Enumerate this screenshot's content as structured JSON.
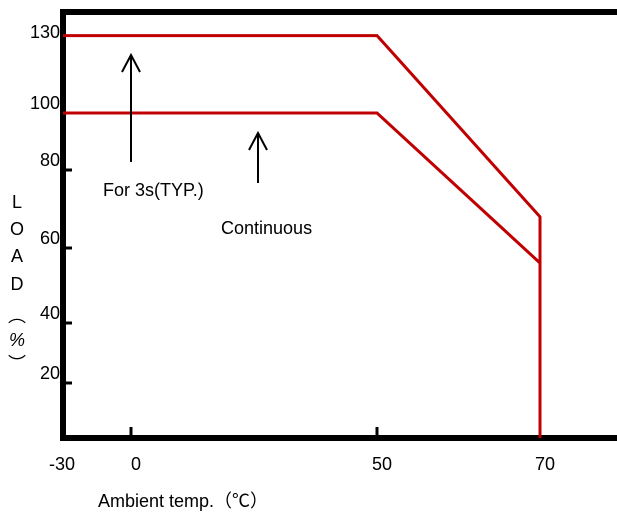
{
  "chart_data": {
    "type": "line",
    "xlabel": "Ambient temp.（℃）",
    "ylabel_chars": [
      "L",
      "O",
      "A",
      "D",
      "︵",
      "%",
      "︶"
    ],
    "x_ticks": [
      -30,
      0,
      50,
      70
    ],
    "y_ticks": [
      20,
      40,
      60,
      80,
      100,
      130
    ],
    "xlim": [
      -30,
      85
    ],
    "ylim": [
      0,
      140
    ],
    "series": [
      {
        "x": [
          -30,
          50,
          70,
          70
        ],
        "y": [
          123,
          123,
          68,
          0
        ]
      },
      {
        "x": [
          -30,
          50,
          70
        ],
        "y": [
          100,
          100,
          56
        ]
      }
    ],
    "annotations": [
      {
        "text": "For 3s(TYP.)"
      },
      {
        "text": "Continuous"
      }
    ],
    "line_color": "#c00000",
    "axis_color": "#000000"
  }
}
